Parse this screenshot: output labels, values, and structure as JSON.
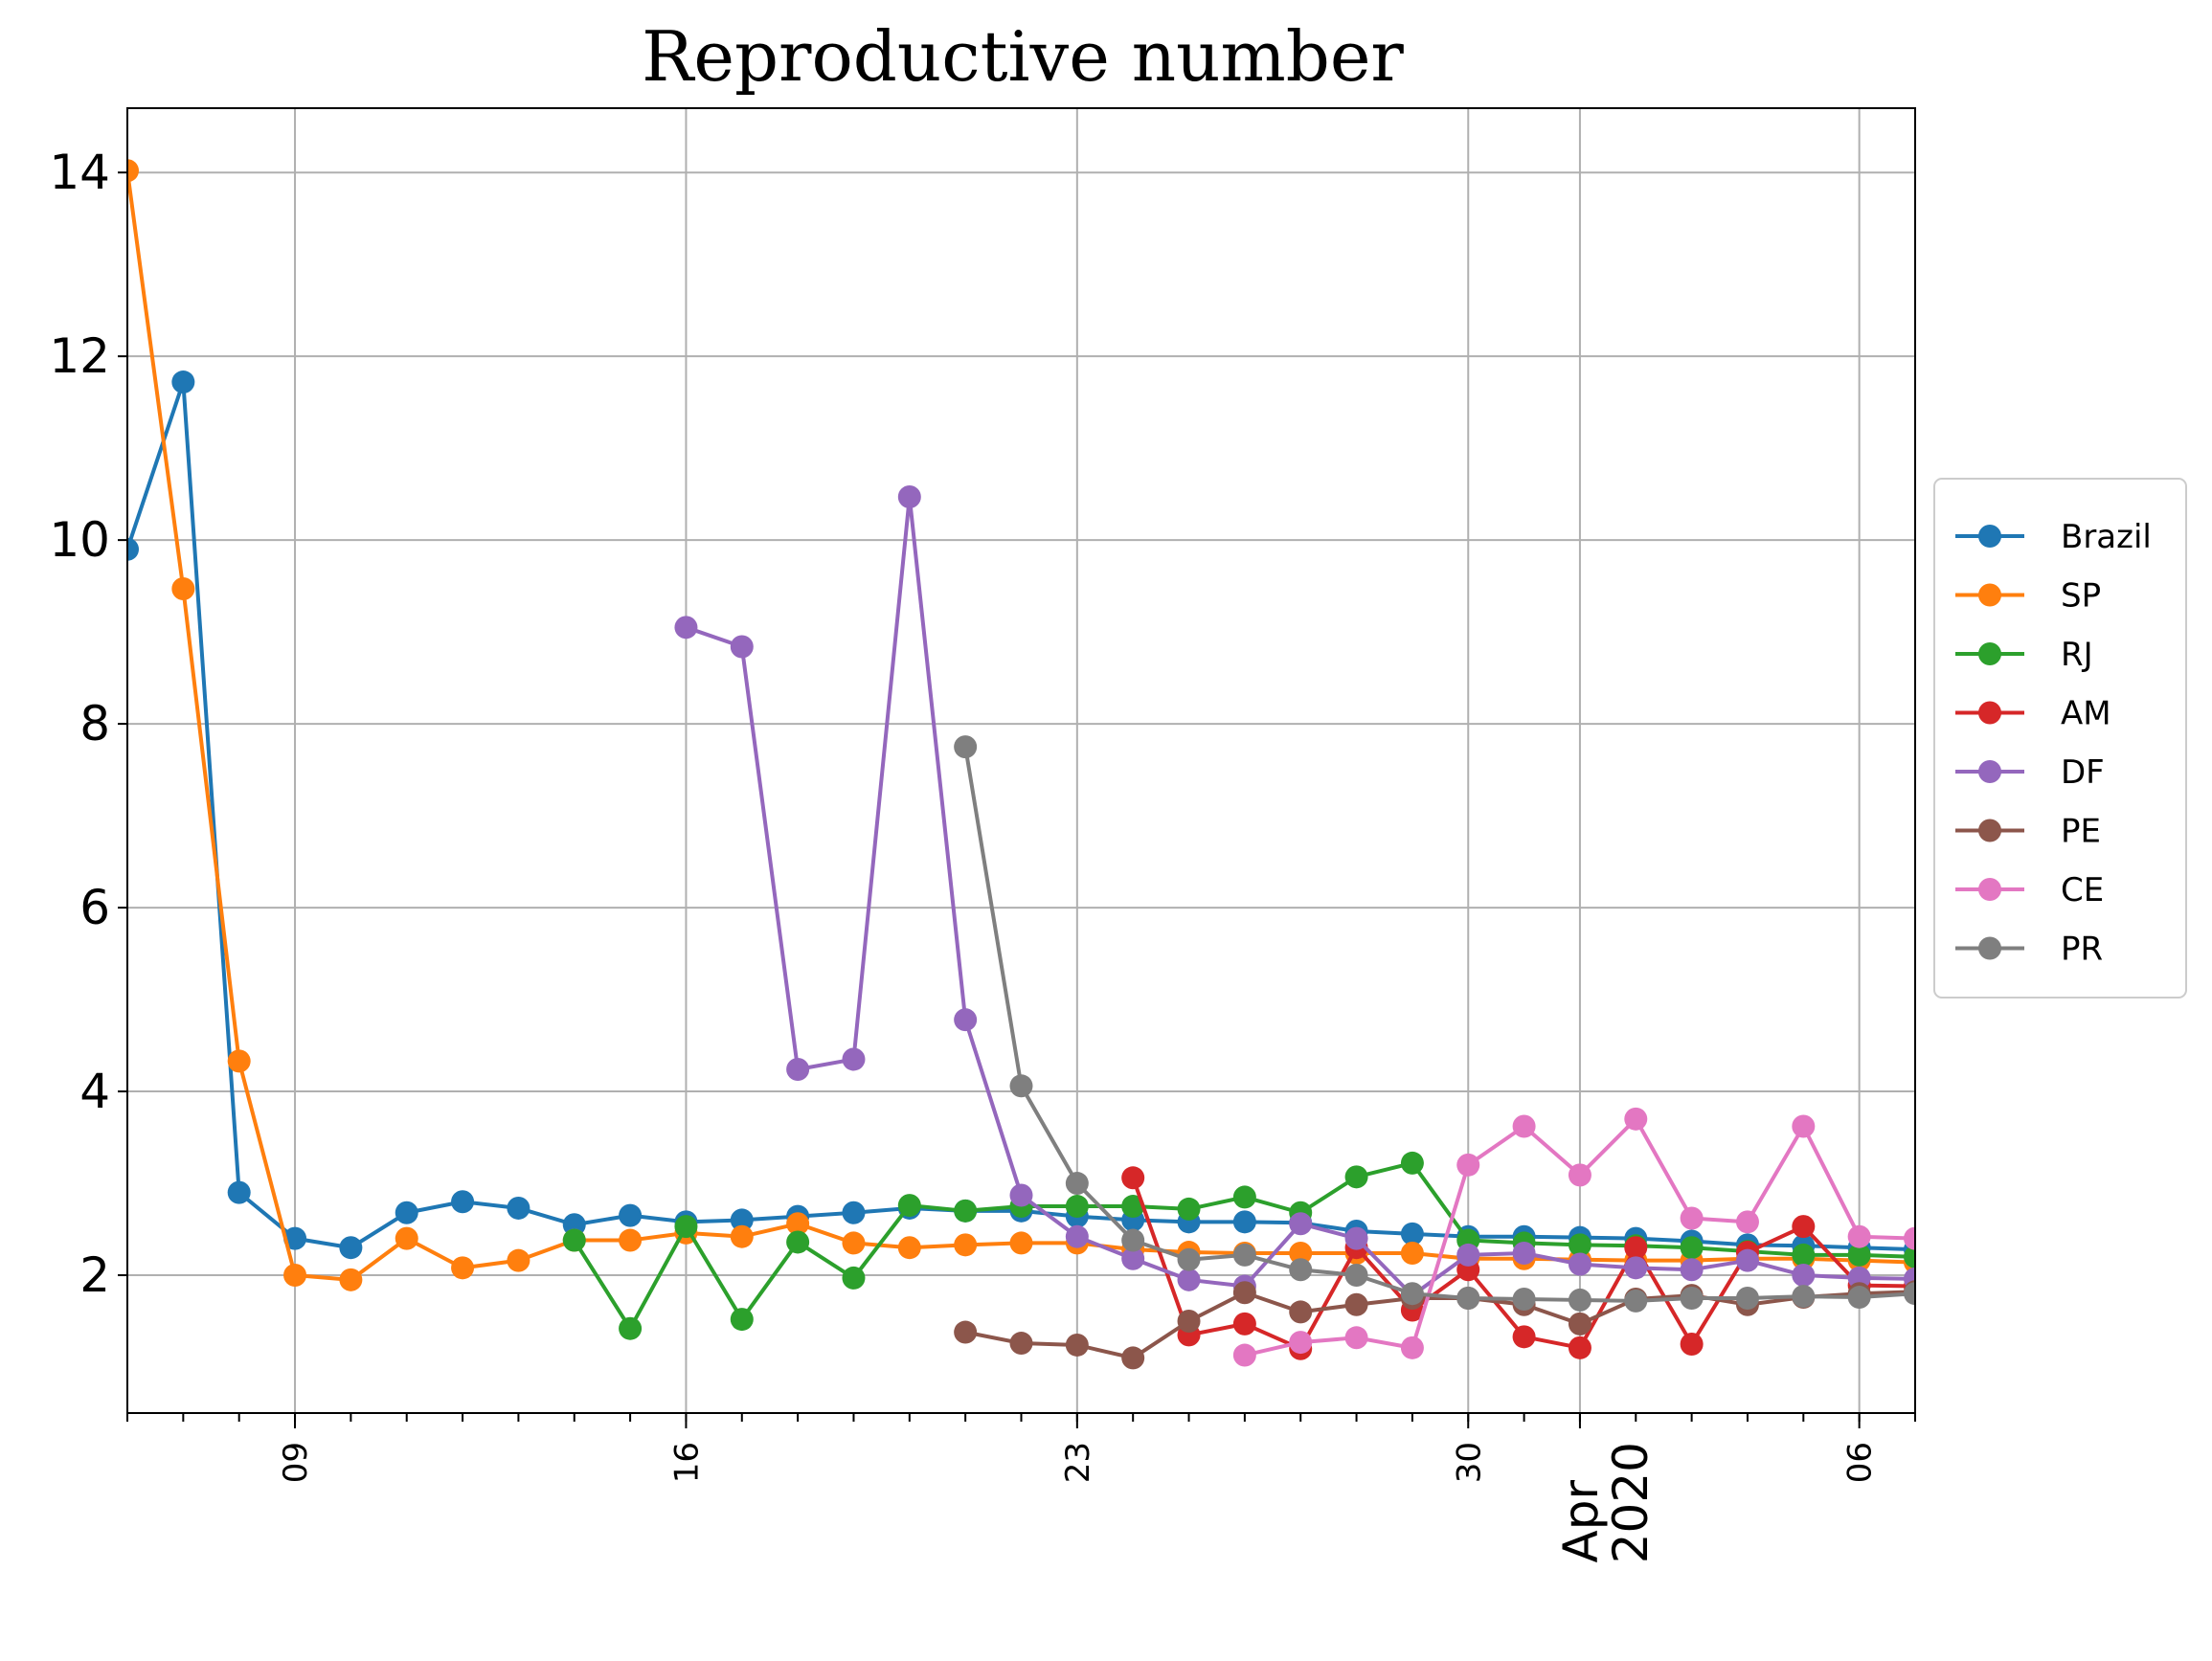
{
  "chart_data": {
    "type": "line",
    "title": "Reproductive number",
    "xlabel": "",
    "ylabel": "",
    "x": [
      "2020-03-06",
      "2020-03-07",
      "2020-03-08",
      "2020-03-09",
      "2020-03-10",
      "2020-03-11",
      "2020-03-12",
      "2020-03-13",
      "2020-03-14",
      "2020-03-15",
      "2020-03-16",
      "2020-03-17",
      "2020-03-18",
      "2020-03-19",
      "2020-03-20",
      "2020-03-21",
      "2020-03-22",
      "2020-03-23",
      "2020-03-24",
      "2020-03-25",
      "2020-03-26",
      "2020-03-27",
      "2020-03-28",
      "2020-03-29",
      "2020-03-30",
      "2020-03-31",
      "2020-04-01",
      "2020-04-02",
      "2020-04-03",
      "2020-04-04",
      "2020-04-05",
      "2020-04-06",
      "2020-04-07"
    ],
    "xlim": [
      "2020-03-06",
      "2020-04-07"
    ],
    "ylim": [
      0.5,
      14.7
    ],
    "yticks": [
      2,
      4,
      6,
      8,
      10,
      12,
      14
    ],
    "xticks": [
      {
        "date": "2020-03-09",
        "label": "09"
      },
      {
        "date": "2020-03-16",
        "label": "16"
      },
      {
        "date": "2020-03-23",
        "label": "23"
      },
      {
        "date": "2020-03-30",
        "label": "30"
      },
      {
        "date": "2020-04-06",
        "label": "06"
      }
    ],
    "month_label": {
      "date": "2020-04-01",
      "month": "Apr",
      "year": "2020"
    },
    "grid": true,
    "legend": "right",
    "series": [
      {
        "name": "Brazil",
        "color": "#1f77b4",
        "values": [
          9.9,
          11.72,
          2.9,
          2.4,
          2.3,
          2.68,
          2.8,
          2.73,
          2.55,
          2.65,
          2.58,
          2.6,
          2.64,
          2.68,
          2.73,
          2.7,
          2.7,
          2.64,
          2.6,
          2.58,
          2.58,
          2.57,
          2.48,
          2.45,
          2.42,
          2.42,
          2.41,
          2.4,
          2.37,
          2.33,
          2.32,
          2.3,
          2.28
        ]
      },
      {
        "name": "SP",
        "color": "#ff7f0e",
        "values": [
          14.02,
          9.47,
          4.33,
          2.0,
          1.95,
          2.4,
          2.08,
          2.16,
          2.38,
          2.38,
          2.46,
          2.42,
          2.56,
          2.35,
          2.3,
          2.33,
          2.35,
          2.35,
          2.28,
          2.25,
          2.24,
          2.24,
          2.24,
          2.24,
          2.18,
          2.18,
          2.17,
          2.16,
          2.16,
          2.18,
          2.18,
          2.16,
          2.14
        ]
      },
      {
        "name": "RJ",
        "color": "#2ca02c",
        "values": [
          null,
          null,
          null,
          null,
          null,
          null,
          null,
          null,
          2.38,
          1.42,
          2.53,
          1.52,
          2.36,
          1.97,
          2.76,
          2.7,
          2.75,
          2.75,
          2.75,
          2.72,
          2.85,
          2.68,
          3.07,
          3.22,
          2.38,
          2.35,
          2.33,
          2.32,
          2.3,
          2.26,
          2.22,
          2.22,
          2.2
        ]
      },
      {
        "name": "AM",
        "color": "#d62728",
        "values": [
          null,
          null,
          null,
          null,
          null,
          null,
          null,
          null,
          null,
          null,
          null,
          null,
          null,
          null,
          null,
          null,
          null,
          null,
          3.06,
          1.35,
          1.47,
          1.2,
          2.3,
          1.62,
          2.06,
          1.33,
          1.21,
          2.3,
          1.25,
          2.25,
          2.53,
          1.89,
          1.88
        ]
      },
      {
        "name": "DF",
        "color": "#9467bd",
        "values": [
          null,
          null,
          null,
          null,
          null,
          null,
          null,
          null,
          null,
          null,
          9.05,
          8.84,
          4.24,
          4.35,
          10.47,
          4.78,
          2.87,
          2.42,
          2.18,
          1.95,
          1.88,
          2.56,
          2.4,
          1.78,
          2.22,
          2.24,
          2.12,
          2.08,
          2.06,
          2.16,
          2.0,
          1.97,
          1.96
        ]
      },
      {
        "name": "PE",
        "color": "#8c564b",
        "values": [
          null,
          null,
          null,
          null,
          null,
          null,
          null,
          null,
          null,
          null,
          null,
          null,
          null,
          null,
          null,
          1.38,
          1.26,
          1.24,
          1.1,
          1.5,
          1.81,
          1.6,
          1.68,
          1.75,
          1.75,
          1.68,
          1.47,
          1.74,
          1.78,
          1.68,
          1.76,
          1.8,
          1.82
        ]
      },
      {
        "name": "CE",
        "color": "#e377c2",
        "values": [
          null,
          null,
          null,
          null,
          null,
          null,
          null,
          null,
          null,
          null,
          null,
          null,
          null,
          null,
          null,
          null,
          null,
          null,
          null,
          null,
          1.13,
          1.27,
          1.32,
          1.21,
          3.2,
          3.62,
          3.09,
          3.7,
          2.62,
          2.58,
          3.62,
          2.42,
          2.4
        ]
      },
      {
        "name": "PR",
        "color": "#7f7f7f",
        "values": [
          null,
          null,
          null,
          null,
          null,
          null,
          null,
          null,
          null,
          null,
          null,
          null,
          null,
          null,
          null,
          7.75,
          4.06,
          3.0,
          2.38,
          2.17,
          2.22,
          2.06,
          2.0,
          1.8,
          1.75,
          1.74,
          1.73,
          1.72,
          1.75,
          1.75,
          1.77,
          1.76,
          1.8
        ]
      }
    ]
  }
}
